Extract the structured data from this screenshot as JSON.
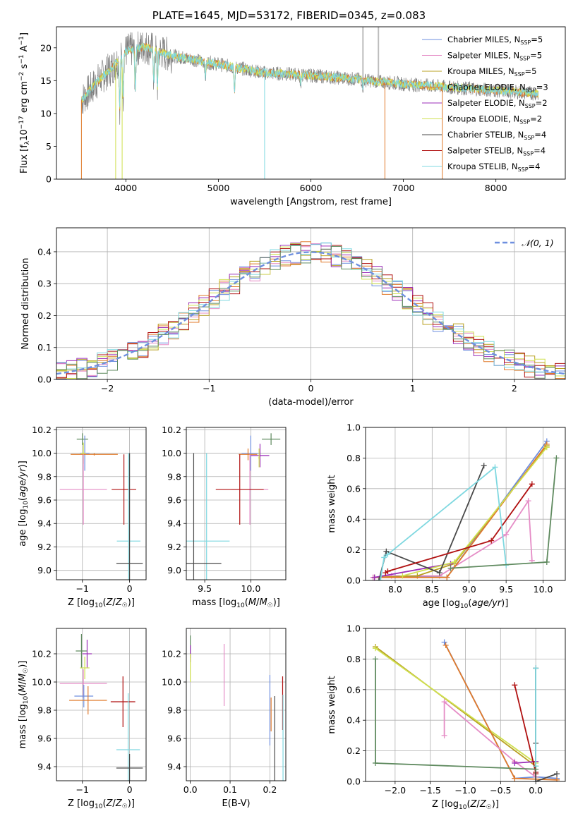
{
  "figure": {
    "title": "PLATE=1645, MJD=53172, FIBERID=0345, z=0.083"
  },
  "palette": {
    "Chabrier MILES": "#6e8fdf",
    "Salpeter MILES": "#e58cc6",
    "Kroupa MILES": "#b8a020",
    "Chabrier ELODIE": "#e07a2a",
    "Salpeter ELODIE": "#9b2fb8",
    "Kroupa ELODIE": "#cfe050",
    "Chabrier STELIB": "#4a4a4a",
    "Salpeter STELIB": "#b01010",
    "Kroupa STELIB": "#7fd8e0",
    "green": "#5f8a5f",
    "data": "#808080"
  },
  "chart_data": [
    {
      "id": "spectrum",
      "type": "line",
      "xlabel": "wavelength [Angstrom, rest frame]",
      "ylabel": "Flux [f_λ 10^-17 erg cm^-2 s^-1 A^-1]",
      "xlim": [
        3250,
        8750
      ],
      "ylim": [
        0,
        23.2
      ],
      "xticks": [
        4000,
        5000,
        6000,
        7000,
        8000
      ],
      "yticks": [
        0,
        5,
        10,
        15,
        20
      ],
      "legend_position": "upper right",
      "legend": [
        {
          "name": "Chabrier MILES",
          "nssp": "5"
        },
        {
          "name": "Salpeter MILES",
          "nssp": "5"
        },
        {
          "name": "Kroupa MILES",
          "nssp": "5"
        },
        {
          "name": "Chabrier ELODIE",
          "nssp": "3"
        },
        {
          "name": "Salpeter ELODIE",
          "nssp": "2"
        },
        {
          "name": "Kroupa ELODIE",
          "nssp": "2"
        },
        {
          "name": "Chabrier STELIB",
          "nssp": "4"
        },
        {
          "name": "Salpeter STELIB",
          "nssp": "4"
        },
        {
          "name": "Kroupa STELIB",
          "nssp": "4"
        }
      ],
      "continuum": [
        [
          3520,
          12.0
        ],
        [
          3700,
          15.0
        ],
        [
          3850,
          17.0
        ],
        [
          4000,
          19.5
        ],
        [
          4200,
          20.2
        ],
        [
          4500,
          18.8
        ],
        [
          5000,
          17.5
        ],
        [
          5500,
          16.2
        ],
        [
          6000,
          15.8
        ],
        [
          6500,
          15.2
        ],
        [
          7000,
          14.5
        ],
        [
          7500,
          14.0
        ],
        [
          8000,
          13.5
        ],
        [
          8460,
          13.0
        ]
      ],
      "absorption_features": [
        [
          3934,
          11.0
        ],
        [
          3969,
          12.5
        ],
        [
          4102,
          13.5
        ],
        [
          4304,
          14.5
        ],
        [
          4341,
          14.0
        ],
        [
          4861,
          15.5
        ],
        [
          5175,
          13.5
        ],
        [
          5890,
          14.5
        ],
        [
          6563,
          14.0
        ]
      ],
      "emission_spikes": [
        6563,
        6730
      ],
      "model_dropouts": [
        [
          3520,
          "Chabrier ELODIE"
        ],
        [
          3890,
          "Kroupa ELODIE"
        ],
        [
          3960,
          "Kroupa ELODIE"
        ],
        [
          5500,
          "Kroupa STELIB"
        ],
        [
          6800,
          "Chabrier ELODIE"
        ],
        [
          7420,
          "Chabrier ELODIE"
        ]
      ]
    },
    {
      "id": "residual-histogram",
      "type": "bar",
      "xlabel": "(data-model)/error",
      "ylabel": "Normed distribution",
      "xlim": [
        -2.5,
        2.5
      ],
      "ylim": [
        0,
        0.475
      ],
      "xticks": [
        -2,
        -1,
        0,
        1,
        2
      ],
      "yticks": [
        0.0,
        0.1,
        0.2,
        0.3,
        0.4
      ],
      "legend_position": "upper right",
      "reference_label": "𝒩(0, 1)",
      "bin_width": 0.1,
      "series": [
        "Chabrier MILES",
        "Salpeter MILES",
        "Kroupa MILES",
        "Chabrier ELODIE",
        "Salpeter ELODIE",
        "Kroupa ELODIE",
        "Salpeter STELIB",
        "Kroupa STELIB",
        "green"
      ]
    },
    {
      "id": "age-vs-Z",
      "type": "scatter",
      "xlabel": "Z [log10(Z/Z☉)]",
      "ylabel": "age [log10(age/yr)]",
      "xlim": [
        -1.55,
        0.35
      ],
      "ylim": [
        8.92,
        10.22
      ],
      "xticks": [
        -1,
        0
      ],
      "yticks": [
        9.0,
        9.2,
        9.4,
        9.6,
        9.8,
        10.0,
        10.2
      ],
      "points": [
        {
          "s": "green",
          "x": -1.0,
          "y": 10.12,
          "xe": 0.12,
          "ye": 0.05
        },
        {
          "s": "Chabrier MILES",
          "x": -0.95,
          "y": 10.0,
          "xe": 0.1,
          "ye": 0.15
        },
        {
          "s": "Kroupa ELODIE",
          "x": -0.98,
          "y": 10.0,
          "xe": 0.05,
          "ye": 0.09
        },
        {
          "s": "Chabrier ELODIE",
          "x": -0.75,
          "y": 9.99,
          "xe": 0.5,
          "ye": 0.01
        },
        {
          "s": "Salpeter MILES",
          "x": -0.98,
          "y": 9.69,
          "xe": 0.5,
          "ye": 0.3
        },
        {
          "s": "Salpeter STELIB",
          "x": -0.12,
          "y": 9.69,
          "xe": 0.26,
          "ye": 0.3
        },
        {
          "s": "Kroupa STELIB",
          "x": -0.02,
          "y": 9.25,
          "xe": 0.25,
          "ye": 0.75
        },
        {
          "s": "Chabrier STELIB",
          "x": 0.0,
          "y": 9.06,
          "xe": 0.28,
          "ye": 0.94
        }
      ]
    },
    {
      "id": "age-vs-mass",
      "type": "scatter",
      "xlabel": "mass [log10(M/M☉)]",
      "ylabel": "",
      "xlim": [
        9.3,
        10.38
      ],
      "ylim": [
        8.92,
        10.22
      ],
      "xticks": [
        9.5,
        10.0
      ],
      "yticks": [
        9.0,
        9.2,
        9.4,
        9.6,
        9.8,
        10.0,
        10.2
      ],
      "points": [
        {
          "s": "green",
          "x": 10.22,
          "y": 10.12,
          "xe": 0.1,
          "ye": 0.05
        },
        {
          "s": "Chabrier MILES",
          "x": 10.0,
          "y": 10.0,
          "xe": 0.1,
          "ye": 0.15
        },
        {
          "s": "Chabrier ELODIE",
          "x": 9.97,
          "y": 9.99,
          "xe": 0.1,
          "ye": 0.05
        },
        {
          "s": "Salpeter ELODIE",
          "x": 10.1,
          "y": 9.98,
          "xe": 0.1,
          "ye": 0.1
        },
        {
          "s": "Kroupa ELODIE",
          "x": 10.09,
          "y": 9.96,
          "xe": 0.01,
          "ye": 0.08
        },
        {
          "s": "Salpeter MILES",
          "x": 9.99,
          "y": 9.69,
          "xe": 0.2,
          "ye": 0.3
        },
        {
          "s": "Salpeter STELIB",
          "x": 9.88,
          "y": 9.69,
          "xe": 0.26,
          "ye": 0.3
        },
        {
          "s": "Kroupa STELIB",
          "x": 9.52,
          "y": 9.25,
          "xe": 0.25,
          "ye": 0.75
        },
        {
          "s": "Chabrier STELIB",
          "x": 9.38,
          "y": 9.06,
          "xe": 0.3,
          "ye": 0.94
        }
      ]
    },
    {
      "id": "weight-vs-age",
      "type": "line",
      "xlabel": "age [log10(age/yr)]",
      "ylabel": "mass weight",
      "xlim": [
        7.6,
        10.3
      ],
      "ylim": [
        0,
        1.0
      ],
      "xticks": [
        8.0,
        8.5,
        9.0,
        9.5,
        10.0
      ],
      "yticks": [
        0.0,
        0.2,
        0.4,
        0.6,
        0.8,
        1.0
      ],
      "series": [
        {
          "s": "Chabrier MILES",
          "points": [
            [
              7.72,
              0.02
            ],
            [
              8.0,
              0.03
            ],
            [
              8.7,
              0.02
            ],
            [
              10.05,
              0.91
            ]
          ]
        },
        {
          "s": "Salpeter MILES",
          "points": [
            [
              7.7,
              0.02
            ],
            [
              7.95,
              0.03
            ],
            [
              8.6,
              0.03
            ],
            [
              9.5,
              0.3
            ],
            [
              9.8,
              0.52
            ],
            [
              9.85,
              0.13
            ]
          ]
        },
        {
          "s": "Kroupa MILES",
          "points": [
            [
              7.72,
              0.02
            ],
            [
              8.3,
              0.03
            ],
            [
              8.8,
              0.11
            ],
            [
              10.05,
              0.88
            ]
          ]
        },
        {
          "s": "Chabrier ELODIE",
          "points": [
            [
              7.72,
              0.02
            ],
            [
              8.7,
              0.02
            ],
            [
              10.05,
              0.89
            ]
          ]
        },
        {
          "s": "Salpeter ELODIE",
          "points": [
            [
              7.72,
              0.02
            ],
            [
              8.75,
              0.11
            ]
          ]
        },
        {
          "s": "Kroupa ELODIE",
          "points": [
            [
              8.1,
              0.03
            ],
            [
              8.8,
              0.12
            ],
            [
              10.05,
              0.87
            ]
          ]
        },
        {
          "s": "Chabrier STELIB",
          "points": [
            [
              7.78,
              0.0
            ],
            [
              7.88,
              0.19
            ],
            [
              8.6,
              0.05
            ],
            [
              9.2,
              0.75
            ]
          ]
        },
        {
          "s": "Salpeter STELIB",
          "points": [
            [
              7.87,
              0.05
            ],
            [
              7.9,
              0.06
            ],
            [
              9.3,
              0.26
            ],
            [
              9.85,
              0.63
            ]
          ]
        },
        {
          "s": "Kroupa STELIB",
          "points": [
            [
              7.8,
              0.0
            ],
            [
              7.85,
              0.15
            ],
            [
              7.9,
              0.17
            ],
            [
              9.35,
              0.74
            ],
            [
              9.5,
              0.1
            ]
          ]
        },
        {
          "s": "green",
          "points": [
            [
              8.75,
              0.08
            ],
            [
              10.05,
              0.12
            ],
            [
              10.18,
              0.8
            ]
          ]
        }
      ]
    },
    {
      "id": "mass-vs-Z",
      "type": "scatter",
      "xlabel": "Z [log10(Z/Z☉)]",
      "ylabel": "mass [log10(M/M☉)]",
      "xlim": [
        -1.55,
        0.35
      ],
      "ylim": [
        9.3,
        10.38
      ],
      "xticks": [
        -1,
        0
      ],
      "yticks": [
        9.4,
        9.6,
        9.8,
        10.0,
        10.2
      ],
      "points": [
        {
          "s": "green",
          "x": -1.02,
          "y": 10.22,
          "xe": 0.12,
          "ye": 0.12
        },
        {
          "s": "Salpeter ELODIE",
          "x": -0.9,
          "y": 10.2,
          "xe": 0.1,
          "ye": 0.1
        },
        {
          "s": "Kroupa ELODIE",
          "x": -0.95,
          "y": 10.1,
          "xe": 0.1,
          "ye": 0.08
        },
        {
          "s": "Salpeter MILES",
          "x": -0.98,
          "y": 9.99,
          "xe": 0.5,
          "ye": 0.1
        },
        {
          "s": "Chabrier MILES",
          "x": -0.97,
          "y": 9.9,
          "xe": 0.2,
          "ye": 0.08
        },
        {
          "s": "Chabrier ELODIE",
          "x": -0.88,
          "y": 9.87,
          "xe": 0.4,
          "ye": 0.1
        },
        {
          "s": "Salpeter STELIB",
          "x": -0.14,
          "y": 9.86,
          "xe": 0.26,
          "ye": 0.18
        },
        {
          "s": "Kroupa STELIB",
          "x": -0.03,
          "y": 9.52,
          "xe": 0.25,
          "ye": 0.4
        },
        {
          "s": "Chabrier STELIB",
          "x": 0.0,
          "y": 9.39,
          "xe": 0.28,
          "ye": 0.1
        }
      ]
    },
    {
      "id": "mass-vs-EBV",
      "type": "scatter",
      "xlabel": "E(B-V)",
      "ylabel": "",
      "xlim": [
        -0.01,
        0.24
      ],
      "ylim": [
        9.3,
        10.38
      ],
      "xticks": [
        0.0,
        0.1,
        0.2
      ],
      "yticks": [
        9.4,
        9.6,
        9.8,
        10.0,
        10.2
      ],
      "points": [
        {
          "s": "green",
          "x": 0.0,
          "y": 10.25,
          "xe": 0,
          "ye": 0.08
        },
        {
          "s": "Salpeter ELODIE",
          "x": 0.0,
          "y": 10.2,
          "xe": 0,
          "ye": 0.06
        },
        {
          "s": "Kroupa ELODIE",
          "x": 0.0,
          "y": 10.1,
          "xe": 0,
          "ye": 0.1
        },
        {
          "s": "Salpeter MILES",
          "x": 0.085,
          "y": 10.05,
          "xe": 0,
          "ye": 0.22
        },
        {
          "s": "Chabrier MILES",
          "x": 0.2,
          "y": 9.8,
          "xe": 0,
          "ye": 0.25
        },
        {
          "s": "Chabrier ELODIE",
          "x": 0.203,
          "y": 9.77,
          "xe": 0,
          "ye": 0.12
        },
        {
          "s": "Chabrier STELIB",
          "x": 0.212,
          "y": 9.57,
          "xe": 0,
          "ye": 0.33
        },
        {
          "s": "Salpeter STELIB",
          "x": 0.232,
          "y": 9.85,
          "xe": 0,
          "ye": 0.19
        },
        {
          "s": "Kroupa STELIB",
          "x": 0.233,
          "y": 9.55,
          "xe": 0,
          "ye": 0.36
        }
      ]
    },
    {
      "id": "weight-vs-Z",
      "type": "line",
      "xlabel": "Z [log10(Z/Z☉)]",
      "ylabel": "mass weight",
      "xlim": [
        -2.42,
        0.42
      ],
      "ylim": [
        0,
        1.0
      ],
      "xticks": [
        -2.0,
        -1.5,
        -1.0,
        -0.5,
        0.0
      ],
      "yticks": [
        0.0,
        0.2,
        0.4,
        0.6,
        0.8,
        1.0
      ],
      "series": [
        {
          "s": "Chabrier MILES",
          "points": [
            [
              -1.3,
              0.91
            ],
            [
              -0.3,
              0.02
            ],
            [
              0.0,
              0.03
            ],
            [
              0.3,
              0.02
            ]
          ]
        },
        {
          "s": "Kroupa MILES",
          "points": [
            [
              -2.28,
              0.88
            ],
            [
              0.0,
              0.1
            ],
            [
              0.0,
              0.03
            ]
          ]
        },
        {
          "s": "Kroupa ELODIE",
          "points": [
            [
              -2.28,
              0.87
            ],
            [
              0.0,
              0.12
            ]
          ]
        },
        {
          "s": "Chabrier ELODIE",
          "points": [
            [
              -1.28,
              0.89
            ],
            [
              -0.3,
              0.02
            ],
            [
              0.3,
              0.01
            ]
          ]
        },
        {
          "s": "Salpeter MILES",
          "points": [
            [
              -1.3,
              0.3
            ],
            [
              -1.3,
              0.52
            ],
            [
              -0.3,
              0.13
            ],
            [
              0.0,
              0.03
            ]
          ]
        },
        {
          "s": "Salpeter ELODIE",
          "points": [
            [
              -0.3,
              0.12
            ],
            [
              0.0,
              0.13
            ]
          ]
        },
        {
          "s": "Salpeter STELIB",
          "points": [
            [
              -0.3,
              0.63
            ],
            [
              0.0,
              0.06
            ],
            [
              0.0,
              0.05
            ]
          ]
        },
        {
          "s": "Chabrier STELIB",
          "points": [
            [
              0.0,
              0.74
            ],
            [
              0.0,
              0.25
            ],
            [
              0.0,
              0.0
            ],
            [
              0.3,
              0.05
            ]
          ]
        },
        {
          "s": "Kroupa STELIB",
          "points": [
            [
              0.0,
              0.74
            ],
            [
              0.0,
              0.1
            ]
          ]
        },
        {
          "s": "green",
          "points": [
            [
              -2.28,
              0.8
            ],
            [
              -2.28,
              0.12
            ],
            [
              0.0,
              0.08
            ]
          ]
        }
      ]
    }
  ]
}
